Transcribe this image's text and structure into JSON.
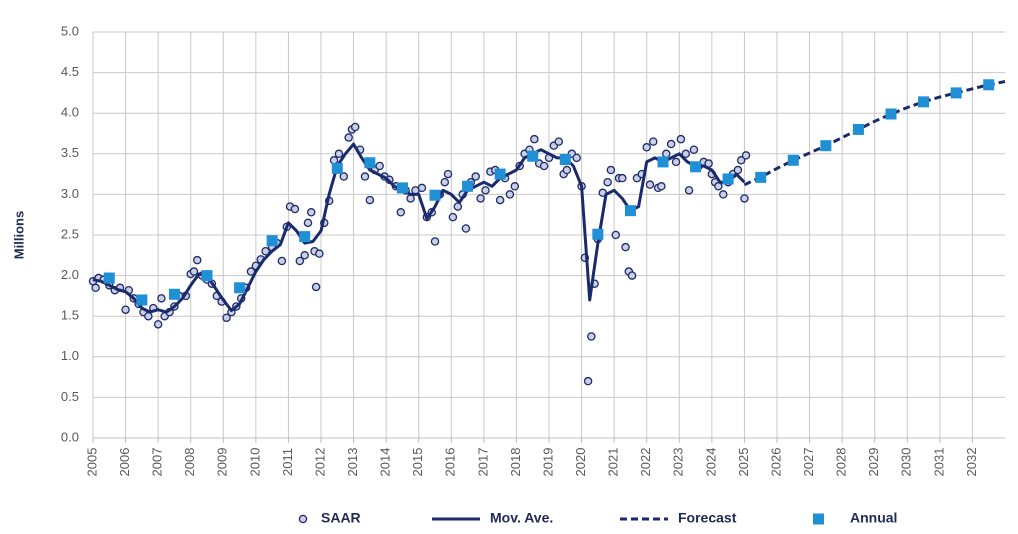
{
  "chart_data": {
    "type": "line",
    "y_label": "Millions",
    "xlim": [
      2005,
      2033
    ],
    "xticks": [
      2005,
      2006,
      2007,
      2008,
      2009,
      2010,
      2011,
      2012,
      2013,
      2014,
      2015,
      2016,
      2017,
      2018,
      2019,
      2020,
      2021,
      2022,
      2023,
      2024,
      2025,
      2026,
      2027,
      2028,
      2029,
      2030,
      2031,
      2032
    ],
    "ylim": [
      0,
      5
    ],
    "yticks": [
      {
        "value": 0,
        "label": "0.0"
      },
      0.5,
      {
        "value": 1,
        "label": "1.0"
      },
      1.5,
      {
        "value": 2,
        "label": "2.0"
      },
      2.5,
      {
        "value": 3,
        "label": "3.0"
      },
      3.5,
      {
        "value": 4,
        "label": "4.0"
      },
      4.5,
      {
        "value": 5,
        "label": "5.0"
      }
    ],
    "grid": true,
    "legend": "bottom",
    "series": [
      {
        "name": "SAAR",
        "mark": "circle",
        "color": "#1f2a6b",
        "x": [
          2005,
          2005.08,
          2005.17,
          2005.33,
          2005.5,
          2005.67,
          2005.83,
          2006,
          2006.1,
          2006.25,
          2006.4,
          2006.55,
          2006.7,
          2006.85,
          2007,
          2007.1,
          2007.2,
          2007.35,
          2007.5,
          2007.65,
          2007.85,
          2008,
          2008.1,
          2008.2,
          2008.35,
          2008.5,
          2008.65,
          2008.8,
          2008.95,
          2009.1,
          2009.25,
          2009.4,
          2009.55,
          2009.7,
          2009.85,
          2010,
          2010.15,
          2010.3,
          2010.5,
          2010.65,
          2010.8,
          2010.95,
          2011.05,
          2011.2,
          2011.35,
          2011.5,
          2011.6,
          2011.7,
          2011.8,
          2011.85,
          2011.95,
          2012.1,
          2012.25,
          2012.4,
          2012.55,
          2012.7,
          2012.85,
          2012.95,
          2013.05,
          2013.2,
          2013.35,
          2013.5,
          2013.65,
          2013.8,
          2013.95,
          2014.1,
          2014.3,
          2014.45,
          2014.6,
          2014.75,
          2014.9,
          2015.1,
          2015.25,
          2015.4,
          2015.5,
          2015.65,
          2015.8,
          2015.9,
          2016.05,
          2016.2,
          2016.35,
          2016.45,
          2016.6,
          2016.75,
          2016.9,
          2017.05,
          2017.2,
          2017.35,
          2017.5,
          2017.65,
          2017.8,
          2017.95,
          2018.1,
          2018.25,
          2018.4,
          2018.55,
          2018.7,
          2018.85,
          2019,
          2019.15,
          2019.3,
          2019.45,
          2019.55,
          2019.7,
          2019.85,
          2020,
          2020.1,
          2020.2,
          2020.3,
          2020.4,
          2020.5,
          2020.65,
          2020.8,
          2020.9,
          2021.05,
          2021.15,
          2021.25,
          2021.35,
          2021.45,
          2021.55,
          2021.7,
          2021.85,
          2022,
          2022.1,
          2022.2,
          2022.35,
          2022.45,
          2022.6,
          2022.75,
          2022.9,
          2023.05,
          2023.2,
          2023.3,
          2023.45,
          2023.6,
          2023.75,
          2023.9,
          2024,
          2024.1,
          2024.2,
          2024.35,
          2024.5,
          2024.65,
          2024.8,
          2024.9,
          2025,
          2025.05
        ],
        "values": [
          1.93,
          1.85,
          1.97,
          1.95,
          1.88,
          1.82,
          1.85,
          1.58,
          1.82,
          1.72,
          1.65,
          1.55,
          1.5,
          1.6,
          1.4,
          1.72,
          1.5,
          1.55,
          1.62,
          1.75,
          1.75,
          2.02,
          2.05,
          2.19,
          2,
          1.95,
          1.9,
          1.75,
          1.68,
          1.48,
          1.55,
          1.62,
          1.72,
          1.85,
          2.05,
          2.12,
          2.2,
          2.3,
          2.35,
          2.4,
          2.18,
          2.6,
          2.85,
          2.82,
          2.18,
          2.25,
          2.65,
          2.78,
          2.3,
          1.86,
          2.27,
          2.65,
          2.92,
          3.42,
          3.5,
          3.22,
          3.7,
          3.8,
          3.83,
          3.55,
          3.22,
          2.93,
          3.3,
          3.35,
          3.22,
          3.18,
          3.1,
          2.78,
          3.05,
          2.95,
          3.05,
          3.08,
          2.72,
          2.78,
          2.42,
          3,
          3.15,
          3.25,
          2.72,
          2.85,
          3,
          2.58,
          3.15,
          3.22,
          2.95,
          3.05,
          3.28,
          3.3,
          2.93,
          3.2,
          3,
          3.1,
          3.35,
          3.5,
          3.55,
          3.68,
          3.38,
          3.35,
          3.45,
          3.6,
          3.65,
          3.25,
          3.3,
          3.5,
          3.45,
          3.1,
          2.22,
          0.7,
          1.25,
          1.9,
          2.45,
          3.02,
          3.15,
          3.3,
          2.5,
          3.2,
          3.2,
          2.35,
          2.05,
          2,
          3.2,
          3.25,
          3.58,
          3.12,
          3.65,
          3.08,
          3.1,
          3.5,
          3.62,
          3.4,
          3.68,
          3.5,
          3.05,
          3.55,
          3.35,
          3.4,
          3.38,
          3.25,
          3.15,
          3.1,
          3,
          3.15,
          3.25,
          3.3,
          3.42,
          2.95,
          3.48
        ]
      },
      {
        "name": "Mov. Ave.",
        "mark": "line",
        "color": "#1a2a6c",
        "x": [
          2005,
          2005.25,
          2005.5,
          2005.75,
          2006,
          2006.25,
          2006.5,
          2006.75,
          2007,
          2007.25,
          2007.5,
          2007.75,
          2008,
          2008.25,
          2008.5,
          2008.75,
          2009,
          2009.25,
          2009.5,
          2009.75,
          2010,
          2010.25,
          2010.5,
          2010.75,
          2011,
          2011.25,
          2011.5,
          2011.75,
          2012,
          2012.25,
          2012.5,
          2012.75,
          2013,
          2013.25,
          2013.5,
          2013.75,
          2014,
          2014.25,
          2014.5,
          2014.75,
          2015,
          2015.25,
          2015.5,
          2015.75,
          2016,
          2016.25,
          2016.5,
          2016.75,
          2017,
          2017.25,
          2017.5,
          2017.75,
          2018,
          2018.25,
          2018.5,
          2018.75,
          2019,
          2019.25,
          2019.5,
          2019.75,
          2020,
          2020.25,
          2020.5,
          2020.75,
          2021,
          2021.25,
          2021.5,
          2021.75,
          2022,
          2022.25,
          2022.5,
          2022.75,
          2023,
          2023.25,
          2023.5,
          2023.75,
          2024,
          2024.25,
          2024.5,
          2024.75,
          2025
        ],
        "values": [
          1.95,
          1.93,
          1.88,
          1.83,
          1.8,
          1.72,
          1.6,
          1.55,
          1.58,
          1.55,
          1.62,
          1.72,
          1.88,
          2.02,
          2,
          1.85,
          1.7,
          1.57,
          1.65,
          1.85,
          2.05,
          2.2,
          2.3,
          2.38,
          2.65,
          2.55,
          2.4,
          2.42,
          2.55,
          3,
          3.35,
          3.5,
          3.62,
          3.45,
          3.3,
          3.25,
          3.2,
          3.1,
          3.05,
          3,
          3,
          2.7,
          2.85,
          3.05,
          3,
          2.9,
          3.05,
          3.1,
          3.15,
          3.1,
          3.2,
          3.25,
          3.3,
          3.45,
          3.5,
          3.55,
          3.5,
          3.45,
          3.45,
          3.35,
          3.1,
          1.7,
          2.4,
          3,
          3.05,
          2.95,
          2.8,
          2.85,
          3.4,
          3.45,
          3.4,
          3.45,
          3.5,
          3.4,
          3.35,
          3.35,
          3.3,
          3.15,
          3.15,
          3.25,
          3.15
        ]
      },
      {
        "name": "Forecast",
        "mark": "dashed",
        "color": "#1a2a6c",
        "x": [
          2025,
          2025.5,
          2026,
          2026.5,
          2027,
          2027.5,
          2028,
          2028.5,
          2029,
          2029.5,
          2030,
          2030.5,
          2031,
          2031.5,
          2032,
          2032.5,
          2033
        ],
        "values": [
          3.12,
          3.21,
          3.32,
          3.42,
          3.51,
          3.6,
          3.7,
          3.8,
          3.9,
          3.99,
          4.07,
          4.14,
          4.2,
          4.25,
          4.3,
          4.35,
          4.39
        ]
      },
      {
        "name": "Annual",
        "mark": "square",
        "color": "#1f8fd6",
        "x": [
          2005.5,
          2006.5,
          2007.5,
          2008.5,
          2009.5,
          2010.5,
          2011.5,
          2012.5,
          2013.5,
          2014.5,
          2015.5,
          2016.5,
          2017.5,
          2018.5,
          2019.5,
          2020.5,
          2021.5,
          2022.5,
          2023.5,
          2024.5,
          2025.5,
          2026.5,
          2027.5,
          2028.5,
          2029.5,
          2030.5,
          2031.5,
          2032.5
        ],
        "values": [
          1.97,
          1.7,
          1.77,
          2,
          1.85,
          2.43,
          2.48,
          3.32,
          3.39,
          3.08,
          2.99,
          3.1,
          3.25,
          3.47,
          3.43,
          2.51,
          2.8,
          3.4,
          3.34,
          3.19,
          3.21,
          3.42,
          3.6,
          3.8,
          3.99,
          4.14,
          4.25,
          4.35
        ]
      }
    ]
  }
}
